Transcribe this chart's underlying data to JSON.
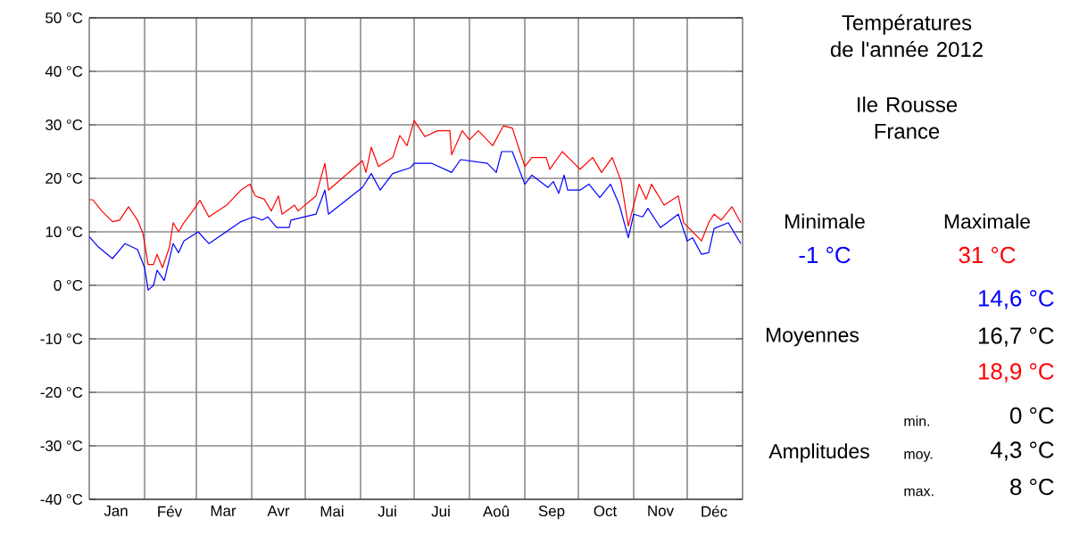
{
  "chart_data": {
    "type": "line",
    "title": "Températures de l'année 2012",
    "subtitle": "Ile Rousse France",
    "xlim": [
      "2012-01-01",
      "2013-01-01"
    ],
    "xticks": [
      {
        "value": "2012-01-16",
        "label": "Jan"
      },
      {
        "value": "2012-02-15",
        "label": "Fév"
      },
      {
        "value": "2012-03-16",
        "label": "Mar"
      },
      {
        "value": "2012-04-16",
        "label": "Avr"
      },
      {
        "value": "2012-05-16",
        "label": "Mai"
      },
      {
        "value": "2012-06-16",
        "label": "Jui"
      },
      {
        "value": "2012-07-16",
        "label": "Jui"
      },
      {
        "value": "2012-08-16",
        "label": "Aoû"
      },
      {
        "value": "2012-09-16",
        "label": "Sep"
      },
      {
        "value": "2012-10-16",
        "label": "Oct"
      },
      {
        "value": "2012-11-16",
        "label": "Nov"
      },
      {
        "value": "2012-12-16",
        "label": "Déc"
      },
      {
        "value": "2012-02-01",
        "label": null
      },
      {
        "value": "2012-03-01",
        "label": null
      },
      {
        "value": "2012-04-01",
        "label": null
      },
      {
        "value": "2012-05-01",
        "label": null
      },
      {
        "value": "2012-06-01",
        "label": null
      },
      {
        "value": "2012-07-01",
        "label": null
      },
      {
        "value": "2012-08-01",
        "label": null
      },
      {
        "value": "2012-09-01",
        "label": null
      },
      {
        "value": "2012-10-01",
        "label": null
      },
      {
        "value": "2012-11-01",
        "label": null
      },
      {
        "value": "2012-12-01",
        "label": null
      }
    ],
    "ylim": [
      -40,
      50
    ],
    "yticks": [
      {
        "value": -40,
        "label": "-40 °C"
      },
      {
        "value": -30,
        "label": "-30 °C"
      },
      {
        "value": -20,
        "label": "-20 °C"
      },
      {
        "value": -10,
        "label": "-10 °C"
      },
      {
        "value": 0,
        "label": "0 °C"
      },
      {
        "value": 10,
        "label": "10 °C"
      },
      {
        "value": 20,
        "label": "20 °C"
      },
      {
        "value": 30,
        "label": "30 °C"
      },
      {
        "value": 40,
        "label": "40 °C"
      },
      {
        "value": 50,
        "label": "50 °C"
      }
    ],
    "grid": true,
    "series": [
      {
        "color": "#ff0000",
        "x": [
          "2012-01-01",
          "2012-01-03",
          "2012-01-08",
          "2012-01-14",
          "2012-01-18",
          "2012-01-23",
          "2012-01-28",
          "2012-01-31",
          "2012-02-03",
          "2012-02-06",
          "2012-02-08",
          "2012-02-11",
          "2012-02-15",
          "2012-02-17",
          "2012-02-20",
          "2012-02-23",
          "2012-02-28",
          "2012-03-03",
          "2012-03-08",
          "2012-03-18",
          "2012-03-26",
          "2012-03-31",
          "2012-04-03",
          "2012-04-08",
          "2012-04-12",
          "2012-04-16",
          "2012-04-18",
          "2012-04-25",
          "2012-04-27",
          "2012-05-07",
          "2012-05-12",
          "2012-05-14",
          "2012-06-02",
          "2012-06-04",
          "2012-06-07",
          "2012-06-11",
          "2012-06-19",
          "2012-06-23",
          "2012-06-27",
          "2012-07-01",
          "2012-07-07",
          "2012-07-14",
          "2012-07-21",
          "2012-07-22",
          "2012-07-28",
          "2012-08-01",
          "2012-08-06",
          "2012-08-14",
          "2012-08-20",
          "2012-08-25",
          "2012-09-01",
          "2012-09-05",
          "2012-09-13",
          "2012-09-15",
          "2012-09-22",
          "2012-10-02",
          "2012-10-09",
          "2012-10-14",
          "2012-10-20",
          "2012-10-25",
          "2012-10-29",
          "2012-11-01",
          "2012-11-04",
          "2012-11-08",
          "2012-11-11",
          "2012-11-18",
          "2012-11-26",
          "2012-11-29",
          "2012-12-04",
          "2012-12-09",
          "2012-12-13",
          "2012-12-16",
          "2012-12-20",
          "2012-12-26",
          "2012-12-31"
        ],
        "values": [
          16,
          16,
          13.9,
          11.9,
          12.2,
          14.7,
          12.2,
          9.8,
          3.9,
          3.9,
          5.8,
          3.3,
          7.2,
          11.7,
          10,
          11.7,
          13.9,
          15.9,
          12.8,
          15,
          17.8,
          18.9,
          16.7,
          16.1,
          13.9,
          16.7,
          13.3,
          15,
          13.9,
          16.7,
          22.8,
          17.8,
          23.3,
          21.1,
          25.8,
          22.2,
          23.9,
          28,
          26.1,
          30.8,
          27.8,
          28.9,
          28.9,
          24.4,
          28.9,
          27.2,
          28.9,
          26.1,
          29.8,
          29.4,
          22.2,
          23.9,
          23.9,
          21.7,
          25,
          21.7,
          23.9,
          21.1,
          23.9,
          19.4,
          11.1,
          15,
          18.9,
          16.1,
          18.9,
          15,
          16.7,
          11.7,
          10,
          8.3,
          11.7,
          13.3,
          12.2,
          14.7,
          11.7
        ]
      },
      {
        "color": "#0000ff",
        "x": [
          "2012-01-01",
          "2012-01-06",
          "2012-01-14",
          "2012-01-21",
          "2012-01-28",
          "2012-02-01",
          "2012-02-03",
          "2012-02-06",
          "2012-02-08",
          "2012-02-12",
          "2012-02-17",
          "2012-02-20",
          "2012-02-23",
          "2012-03-02",
          "2012-03-08",
          "2012-03-26",
          "2012-04-02",
          "2012-04-07",
          "2012-04-10",
          "2012-04-15",
          "2012-04-22",
          "2012-04-23",
          "2012-05-07",
          "2012-05-12",
          "2012-05-14",
          "2012-06-02",
          "2012-06-07",
          "2012-06-12",
          "2012-06-19",
          "2012-06-29",
          "2012-07-01",
          "2012-07-11",
          "2012-07-22",
          "2012-07-27",
          "2012-08-11",
          "2012-08-16",
          "2012-08-19",
          "2012-08-25",
          "2012-09-01",
          "2012-09-05",
          "2012-09-14",
          "2012-09-17",
          "2012-09-20",
          "2012-09-23",
          "2012-09-25",
          "2012-10-02",
          "2012-10-07",
          "2012-10-13",
          "2012-10-19",
          "2012-10-24",
          "2012-10-29",
          "2012-11-01",
          "2012-11-06",
          "2012-11-09",
          "2012-11-16",
          "2012-11-26",
          "2012-12-01",
          "2012-12-04",
          "2012-12-09",
          "2012-12-13",
          "2012-12-16",
          "2012-12-24",
          "2012-12-31"
        ],
        "values": [
          9.1,
          7.2,
          5,
          7.8,
          6.7,
          3.3,
          -0.9,
          0,
          2.8,
          0.9,
          7.8,
          6.1,
          8.3,
          10,
          7.8,
          11.9,
          12.8,
          12.2,
          12.8,
          10.8,
          10.8,
          12.2,
          13.3,
          17.8,
          13.3,
          18.3,
          20.9,
          17.8,
          20.9,
          22,
          22.8,
          22.8,
          21.1,
          23.5,
          22.8,
          21.1,
          25,
          25,
          18.9,
          20.6,
          18.3,
          19.4,
          17.2,
          20.6,
          17.8,
          17.8,
          18.9,
          16.4,
          18.9,
          15,
          8.9,
          13.3,
          12.8,
          14.4,
          10.8,
          13.3,
          8.3,
          8.9,
          5.8,
          6.1,
          10.6,
          11.7,
          7.8
        ]
      }
    ],
    "annotations": [
      "Minimale",
      "Maximale",
      "-1 °C",
      "31 °C",
      "14,6 °C",
      "Moyennes",
      "16,7 °C",
      "18,9 °C",
      "min.",
      "0 °C",
      "Amplitudes",
      "moy.",
      "4,3 °C",
      "max.",
      "8 °C"
    ]
  }
}
